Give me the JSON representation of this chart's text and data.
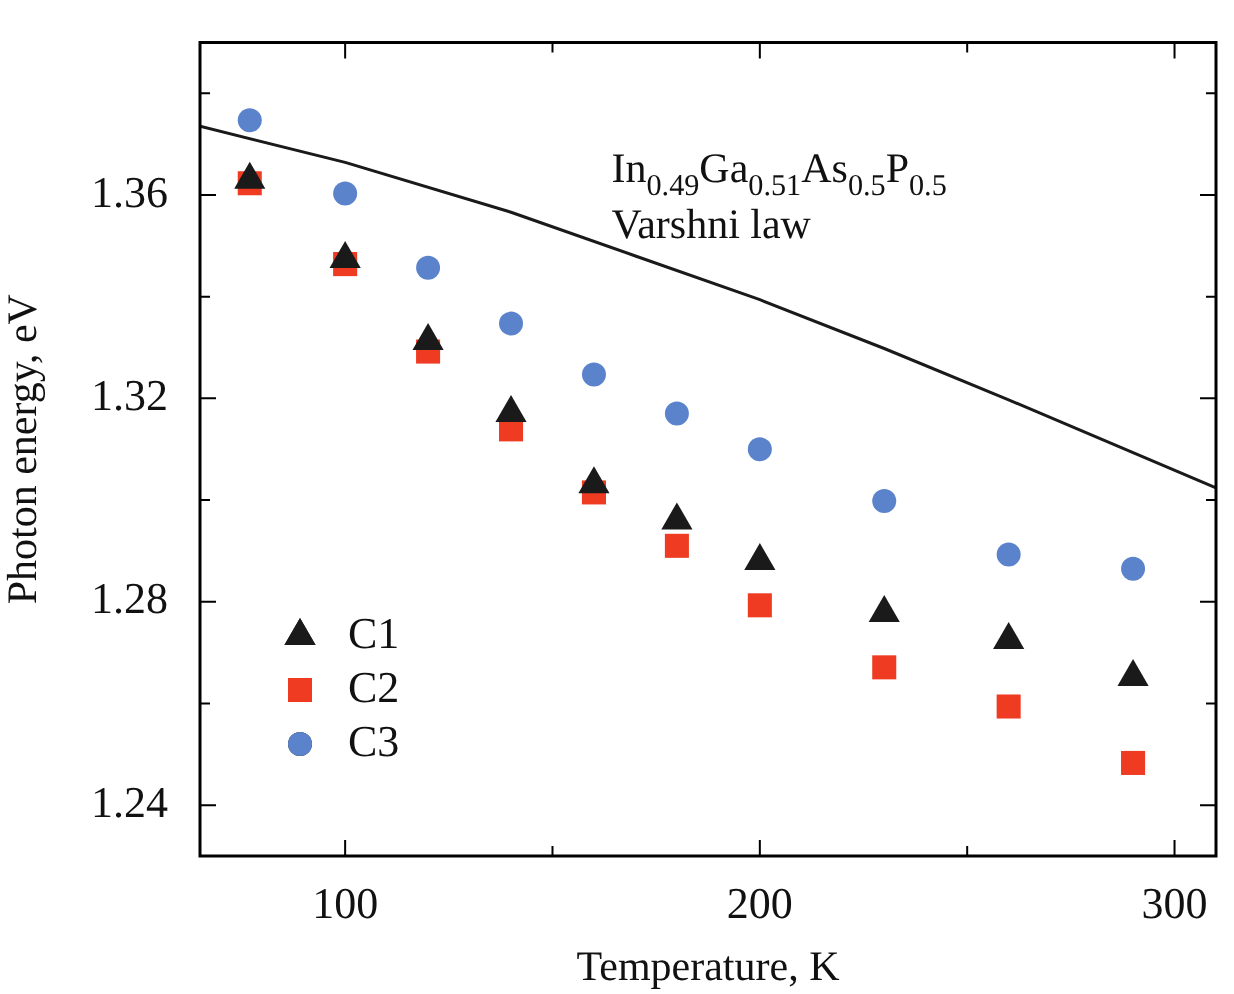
{
  "chart_data": {
    "type": "scatter",
    "xlabel": "Temperature, K",
    "ylabel": "Photon energy, eV",
    "xlim": [
      65,
      310
    ],
    "xticks": [
      100,
      {
        "value": 150,
        "label": null
      },
      200,
      {
        "value": 250,
        "label": null
      },
      300
    ],
    "ylim": [
      1.23,
      1.39
    ],
    "yticks": [
      1.24,
      {
        "value": 1.26,
        "label": null
      },
      1.28,
      {
        "value": 1.3,
        "label": null
      },
      1.32,
      {
        "value": 1.34,
        "label": null
      },
      1.36,
      {
        "value": 1.38,
        "label": null
      }
    ],
    "grid": false,
    "legend": "bottom left",
    "annotations": [
      "In$_{0.49}$Ga$_{0.51}$As$_{0.5}$P$_{0.5}$",
      "Varshni law"
    ],
    "x": [
      77,
      100,
      120,
      140,
      160,
      180,
      200,
      230,
      260,
      290
    ],
    "series": [
      {
        "type": "line",
        "color": "#1a1a1a",
        "marker": "none",
        "line_style": "solid",
        "x": [
          65,
          100,
          140,
          170,
          200,
          230,
          260,
          310
        ],
        "values": [
          1.3735,
          1.3664,
          1.3566,
          1.348,
          1.3394,
          1.3298,
          1.3197,
          1.3024
        ]
      },
      {
        "name": "C1",
        "color": "#1a1a1a",
        "marker": "triangle",
        "values": [
          1.363,
          1.3474,
          1.3313,
          1.3171,
          1.3031,
          1.296,
          1.288,
          1.2778,
          1.2725,
          1.2652
        ]
      },
      {
        "name": "C2",
        "color": "#ee3b22",
        "marker": "square",
        "values": [
          1.3623,
          1.3464,
          1.3292,
          1.3139,
          1.3015,
          1.291,
          1.2793,
          1.2671,
          1.2594,
          1.2483
        ]
      },
      {
        "name": "C3",
        "color": "#5b83cc",
        "marker": "circle",
        "values": [
          1.3747,
          1.3603,
          1.3457,
          1.3347,
          1.3247,
          1.317,
          1.31,
          1.2998,
          1.2893,
          1.2865
        ]
      }
    ]
  }
}
